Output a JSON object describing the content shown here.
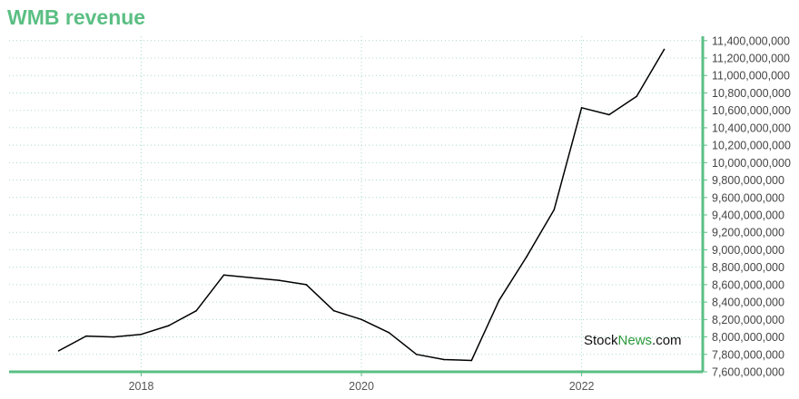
{
  "title": "WMB revenue",
  "watermark": {
    "part1": "Stock",
    "part2": "News",
    "part3": ".com"
  },
  "colors": {
    "accent": "#5bbf84",
    "line": "#000000",
    "grid": "#a8dcc4",
    "watermark_green": "#2a9a3a"
  },
  "chart_data": {
    "type": "line",
    "title": "WMB revenue",
    "xlabel": "",
    "ylabel": "",
    "x_ticks": [
      "2018",
      "2020",
      "2022"
    ],
    "x_tick_values": [
      2018,
      2020,
      2022
    ],
    "xlim": [
      2016.8,
      2023.1
    ],
    "ylim": [
      7600000000,
      11450000000
    ],
    "y_ticks": [
      7600000000,
      7800000000,
      8000000000,
      8200000000,
      8400000000,
      8600000000,
      8800000000,
      9000000000,
      9200000000,
      9400000000,
      9600000000,
      9800000000,
      10000000000,
      10200000000,
      10400000000,
      10600000000,
      10800000000,
      11000000000,
      11200000000,
      11400000000
    ],
    "y_tick_labels": [
      "7,600,000,000",
      "7,800,000,000",
      "8,000,000,000",
      "8,200,000,000",
      "8,400,000,000",
      "8,600,000,000",
      "8,800,000,000",
      "9,000,000,000",
      "9,200,000,000",
      "9,400,000,000",
      "9,600,000,000",
      "9,800,000,000",
      "10,000,000,000",
      "10,200,000,000",
      "10,400,000,000",
      "10,600,000,000",
      "10,800,000,000",
      "11,000,000,000",
      "11,200,000,000",
      "11,400,000,000"
    ],
    "grid": true,
    "y_axis_side": "right",
    "series": [
      {
        "x": [
          2017.25,
          2017.5,
          2017.75,
          2018.0,
          2018.25,
          2018.5,
          2018.75,
          2019.0,
          2019.25,
          2019.5,
          2019.75,
          2020.0,
          2020.25,
          2020.5,
          2020.75,
          2021.0,
          2021.25,
          2021.5,
          2021.75,
          2022.0,
          2022.25,
          2022.5,
          2022.75
        ],
        "values": [
          7840000000,
          8010000000,
          8000000000,
          8030000000,
          8130000000,
          8300000000,
          8710000000,
          8680000000,
          8650000000,
          8600000000,
          8300000000,
          8200000000,
          8050000000,
          7800000000,
          7740000000,
          7730000000,
          8420000000,
          8920000000,
          9460000000,
          10630000000,
          10550000000,
          10760000000,
          11300000000
        ]
      }
    ]
  }
}
